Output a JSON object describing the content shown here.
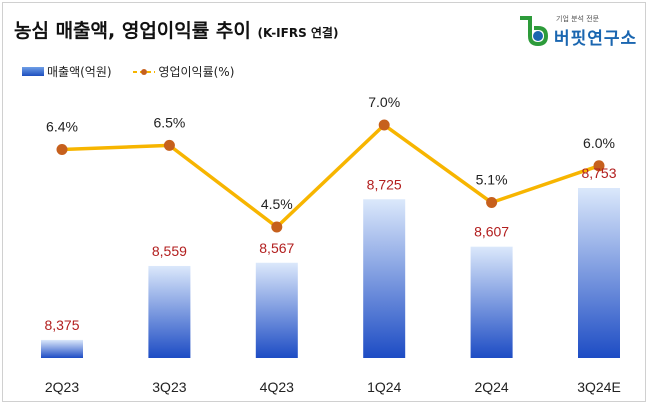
{
  "title": "농심 매출액, 영업이익률 추이",
  "subtitle": "(K-IFRS 연결)",
  "logo": {
    "small": "기업 분석 전문",
    "main": "버핏연구소"
  },
  "legend": {
    "bars": "매출액(억원)",
    "line": "영업이익률(%)"
  },
  "colors": {
    "bar_top": "#dbe8fb",
    "bar_bottom": "#1d4cc4",
    "line": "#f7b500",
    "marker": "#c6601d",
    "bar_label": "#b21e1e",
    "line_label": "#222222"
  },
  "chart_data": {
    "type": "bar+line",
    "categories": [
      "2Q23",
      "3Q23",
      "4Q23",
      "1Q24",
      "2Q24",
      "3Q24E"
    ],
    "series": [
      {
        "name": "매출액(억원)",
        "type": "bar",
        "values": [
          8375,
          8559,
          8567,
          8725,
          8607,
          8753
        ],
        "labels": [
          "8,375",
          "8,559",
          "8,567",
          "8,725",
          "8,607",
          "8,753"
        ]
      },
      {
        "name": "영업이익률(%)",
        "type": "line",
        "values": [
          6.4,
          6.5,
          4.5,
          7.0,
          5.1,
          6.0
        ],
        "labels": [
          "6.4%",
          "6.5%",
          "4.5%",
          "7.0%",
          "5.1%",
          "6.0%"
        ]
      }
    ]
  }
}
